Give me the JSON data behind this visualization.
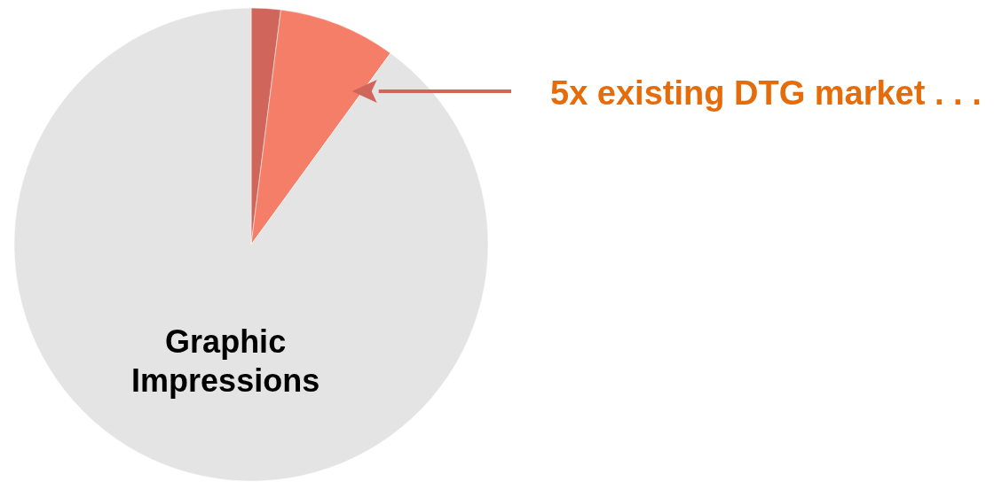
{
  "chart_data": {
    "type": "pie",
    "categories": [
      null,
      null,
      "Graphic Impressions"
    ],
    "values": [
      2,
      8,
      90
    ],
    "colors": [
      "#d0655c",
      "#f47e68",
      "#e4e4e4"
    ],
    "annotations": [
      "5x existing DTG market . . ."
    ]
  }
}
